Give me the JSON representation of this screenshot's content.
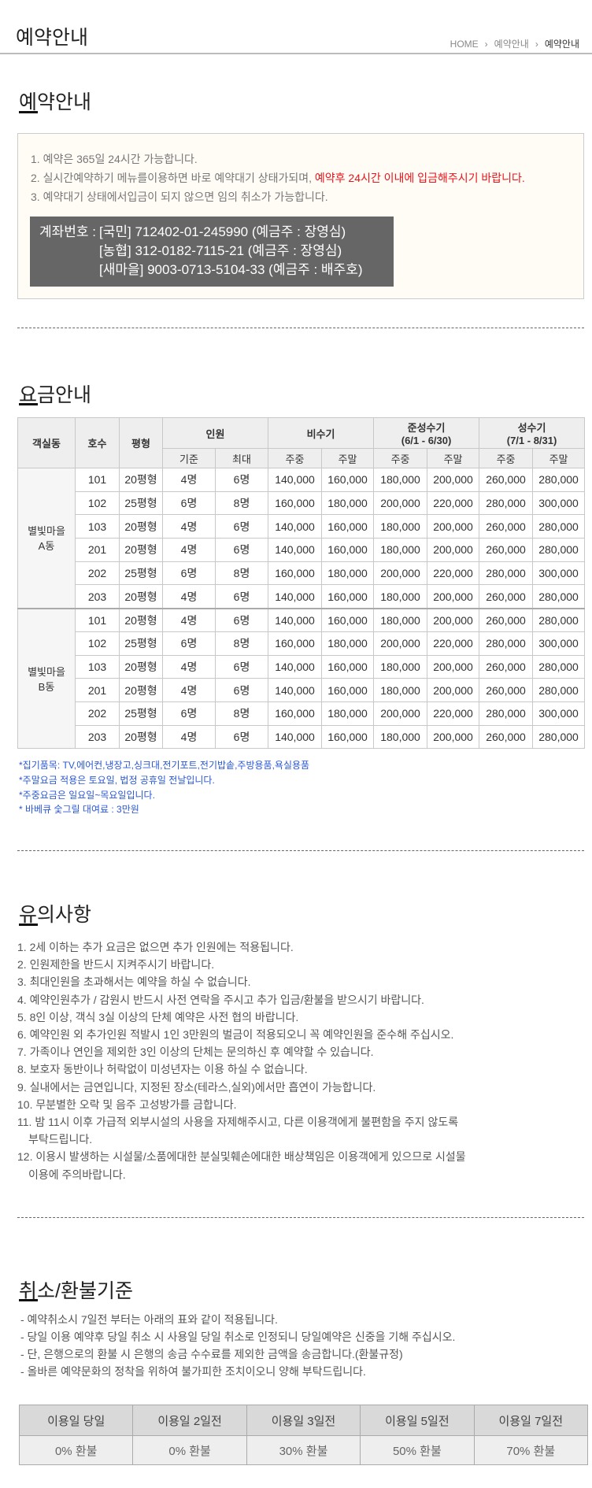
{
  "header": {
    "title": "예약안내",
    "breadcrumb": [
      "HOME",
      "예약안내",
      "예약안내"
    ]
  },
  "reservation": {
    "title": "예약안내",
    "lines": [
      "1. 예약은 365일 24시간 가능합니다.",
      "2. 실시간예약하기 메뉴를이용하면 바로 예약대기 상태가되며, ",
      "3. 예약대기 상태에서입금이 되지 않으면 임의 취소가 가능합니다."
    ],
    "line2_highlight": "예약후 24시간 이내에 입금해주시기 바랍니다.",
    "highlight_color": "#e8141c",
    "account_label": "계좌번호 :",
    "accounts": [
      "[국민] 712402-01-245990 (예금주 : 장영심)",
      "[농협] 312-0182-7115-21 (예금주 : 장영심)",
      "[새마을] 9003-0713-5104-33 (예금주 : 배주호)"
    ]
  },
  "pricing": {
    "title": "요금안내",
    "headers": {
      "building": "객실동",
      "room": "호수",
      "size": "평형",
      "people": "인원",
      "off": "비수기",
      "mid": "준성수기",
      "mid_range": "(6/1 - 6/30)",
      "peak": "성수기",
      "peak_range": "(7/1 - 8/31)",
      "base": "기준",
      "max": "최대",
      "weekday": "주중",
      "weekend": "주말"
    },
    "groups": [
      {
        "name": "별빛마을\nA동",
        "rows": [
          [
            "101",
            "20평형",
            "4명",
            "6명",
            "140,000",
            "160,000",
            "180,000",
            "200,000",
            "260,000",
            "280,000"
          ],
          [
            "102",
            "25평형",
            "6명",
            "8명",
            "160,000",
            "180,000",
            "200,000",
            "220,000",
            "280,000",
            "300,000"
          ],
          [
            "103",
            "20평형",
            "4명",
            "6명",
            "140,000",
            "160,000",
            "180,000",
            "200,000",
            "260,000",
            "280,000"
          ],
          [
            "201",
            "20평형",
            "4명",
            "6명",
            "140,000",
            "160,000",
            "180,000",
            "200,000",
            "260,000",
            "280,000"
          ],
          [
            "202",
            "25평형",
            "6명",
            "8명",
            "160,000",
            "180,000",
            "200,000",
            "220,000",
            "280,000",
            "300,000"
          ],
          [
            "203",
            "20평형",
            "4명",
            "6명",
            "140,000",
            "160,000",
            "180,000",
            "200,000",
            "260,000",
            "280,000"
          ]
        ]
      },
      {
        "name": "별빛마을\nB동",
        "rows": [
          [
            "101",
            "20평형",
            "4명",
            "6명",
            "140,000",
            "160,000",
            "180,000",
            "200,000",
            "260,000",
            "280,000"
          ],
          [
            "102",
            "25평형",
            "6명",
            "8명",
            "160,000",
            "180,000",
            "200,000",
            "220,000",
            "280,000",
            "300,000"
          ],
          [
            "103",
            "20평형",
            "4명",
            "6명",
            "140,000",
            "160,000",
            "180,000",
            "200,000",
            "260,000",
            "280,000"
          ],
          [
            "201",
            "20평형",
            "4명",
            "6명",
            "140,000",
            "160,000",
            "180,000",
            "200,000",
            "260,000",
            "280,000"
          ],
          [
            "202",
            "25평형",
            "6명",
            "8명",
            "160,000",
            "180,000",
            "200,000",
            "220,000",
            "280,000",
            "300,000"
          ],
          [
            "203",
            "20평형",
            "4명",
            "6명",
            "140,000",
            "160,000",
            "180,000",
            "200,000",
            "260,000",
            "280,000"
          ]
        ]
      }
    ],
    "notes": [
      "*집기품목: TV,에어컨,냉장고,싱크대,전기포트,전기밥솥,주방용품,욕실용품",
      "*주말요금 적용은 토요일, 법정 공휴일 전날입니다.",
      "*주중요금은 일요일~목요일입니다.",
      "* 바베큐 숯그릴 대여료 : 3만원"
    ],
    "note_color": "#2a57d6"
  },
  "cautions": {
    "title": "유의사항",
    "items": [
      "1. 2세 이하는 추가 요금은 없으면 추가 인원에는 적용됩니다.",
      "2. 인원제한을 반드시 지켜주시기 바랍니다.",
      "3. 최대인원을 초과해서는 예약을 하실 수 없습니다.",
      "4. 예약인원추가 / 감원시 반드시 사전 연락을 주시고 추가 입금/환불을 받으시기 바랍니다.",
      "5. 8인 이상, 객식 3실 이상의 단체 예약은 사전 협의 바랍니다.",
      "6. 예약인원 외 추가인원 적발시 1인 3만원의 벌금이 적용되오니 꼭 예약인원을 준수해 주십시오.",
      "7. 가족이나 연인을 제외한 3인 이상의 단체는 문의하신 후 예약할 수 있습니다.",
      "8. 보호자 동반이나 허락없이 미성년자는 이용 하실 수 없습니다.",
      "9. 실내에서는 금연입니다, 지정된 장소(테라스,실외)에서만 흡연이 가능합니다.",
      "10. 무분별한 오락 및 음주 고성방가를 금합니다.",
      "11. 밤 11시 이후 가급적 외부시설의 사용을 자제해주시고, 다른 이용객에게 불편함을 주지 않도록",
      "부탁드립니다.",
      "12. 이용시 발생하는 시설물/소품에대한 분실및훼손에대한 배상책임은 이용객에게 있으므로 시설물",
      "이용에 주의바랍니다."
    ]
  },
  "refund": {
    "title": "취소/환불기준",
    "lines": [
      "- 예약취소시 7일전 부터는 아래의 표와 같이 적용됩니다.",
      "- 당일 이용 예약후 당일 취소 시 사용일 당일 취소로 인정되니 당일예약은 신중을 기해 주십시오.",
      "- 단, 은행으로의 환불 시 은행의 송금 수수료를 제외한 금액을 송금합니다.(환불규정)",
      "- 올바른 예약문화의 정착을 위하여 불가피한 조치이오니 양해 부탁드립니다."
    ],
    "headers": [
      "이용일 당일",
      "이용일 2일전",
      "이용일 3일전",
      "이용일 5일전",
      "이용일 7일전"
    ],
    "values": [
      "0% 환불",
      "0% 환불",
      "30% 환불",
      "50% 환불",
      "70% 환불"
    ]
  }
}
